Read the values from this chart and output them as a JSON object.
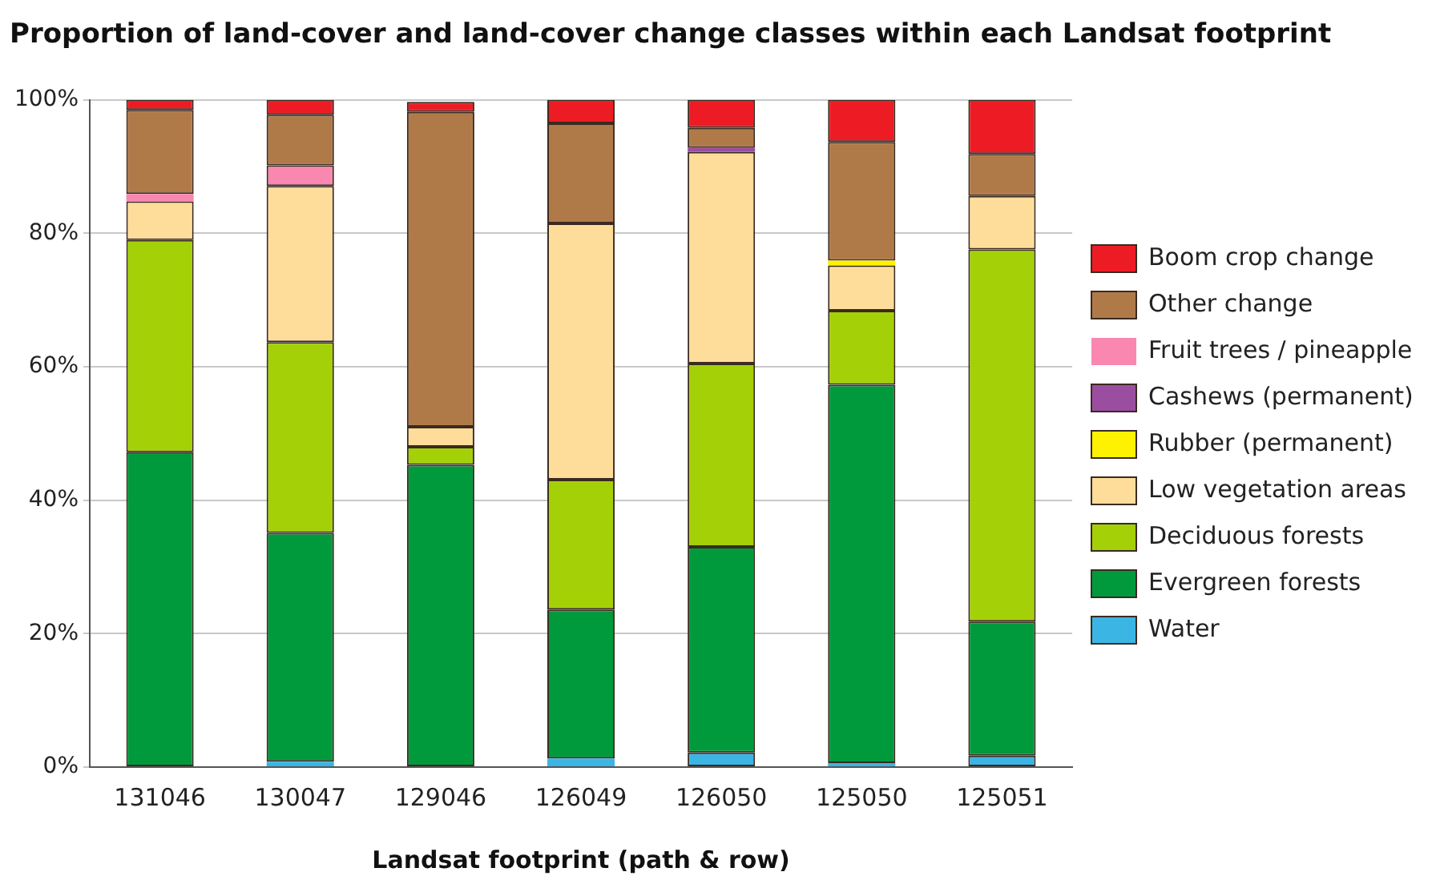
{
  "chart_data": {
    "type": "bar",
    "title": "Proportion of land-cover and land-cover change classes within each Landsat footprint",
    "xlabel": "Landsat footprint (path & row)",
    "categories": [
      "131046",
      "130047",
      "129046",
      "126049",
      "126050",
      "125050",
      "125051"
    ],
    "stacked": true,
    "ylim": [
      0,
      100
    ],
    "yticks": [
      {
        "value": 0,
        "label": "0%"
      },
      {
        "value": 20,
        "label": "20%"
      },
      {
        "value": 40,
        "label": "40%"
      },
      {
        "value": 60,
        "label": "60%"
      },
      {
        "value": 80,
        "label": "80%"
      },
      {
        "value": 100,
        "label": "100%"
      }
    ],
    "grid": "y",
    "legend": "right",
    "series": [
      {
        "name": "Water",
        "color": "#3bb5e4",
        "values": [
          null,
          0.8,
          null,
          1.3,
          2.2,
          0.6,
          1.7
        ]
      },
      {
        "name": "Evergreen forests",
        "color": "#009a3c",
        "values": [
          47.2,
          34.3,
          45.3,
          22.3,
          30.8,
          56.7,
          20.1
        ]
      },
      {
        "name": "Deciduous forests",
        "color": "#a4d007",
        "values": [
          31.8,
          28.6,
          2.7,
          19.5,
          27.5,
          11.1,
          55.8
        ]
      },
      {
        "name": "Low vegetation areas",
        "color": "#fedd9a",
        "values": [
          5.8,
          23.4,
          3.0,
          38.4,
          31.7,
          6.8,
          8.0
        ]
      },
      {
        "name": "Rubber (permanent)",
        "color": "#fff200",
        "values": [
          null,
          null,
          null,
          null,
          null,
          0.7,
          null
        ]
      },
      {
        "name": "Cashews (permanent)",
        "color": "#9b4ea0",
        "values": [
          null,
          null,
          null,
          null,
          0.6,
          null,
          null
        ]
      },
      {
        "name": "Fruit trees / pineapple",
        "color": "#f987b0",
        "values": [
          1.1,
          3.1,
          null,
          null,
          null,
          null,
          null
        ]
      },
      {
        "name": "Other change",
        "color": "#b07a48",
        "values": [
          12.6,
          7.6,
          47.2,
          15.0,
          3.0,
          17.8,
          6.3
        ]
      },
      {
        "name": "Boom crop change",
        "color": "#ed1c24",
        "values": [
          1.5,
          2.2,
          1.5,
          3.5,
          4.2,
          6.3,
          8.1
        ]
      }
    ]
  }
}
